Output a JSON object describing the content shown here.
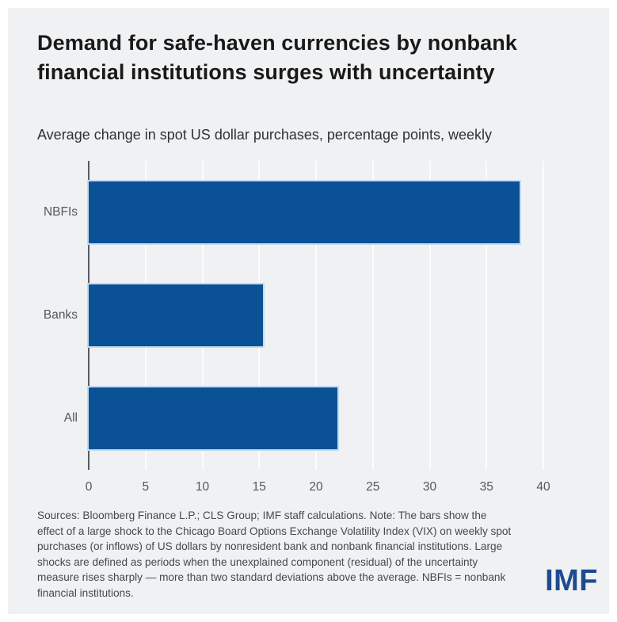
{
  "colors": {
    "card_bg": "#f0f1f2",
    "bar": "#0a5196",
    "bar_halo": "#c3daf1",
    "grid_line": "rgba(255,255,255,0.8)",
    "axis_line": "#595c60",
    "axis_text": "#54575b",
    "title_text": "#191919",
    "subtitle_text": "#2f3133",
    "note_text": "#45484c",
    "imf_logo": "#1e4b8f"
  },
  "header": {
    "title_lines": [
      "Demand for safe-haven currencies by nonbank",
      "financial institutions surges with uncertainty"
    ],
    "subtitle": "Average change in spot US dollar purchases, percentage points, weekly"
  },
  "chart_data": {
    "type": "bar",
    "orientation": "horizontal",
    "title": "Demand for safe-haven currencies by nonbank financial institutions surges with uncertainty",
    "subtitle": "Average change in spot US dollar purchases, percentage points, weekly",
    "categories": [
      "NBFIs",
      "Banks",
      "All"
    ],
    "values": [
      37.9,
      15.3,
      21.9
    ],
    "xlabel": "",
    "ylabel": "",
    "xlim": [
      0,
      40
    ],
    "xticks": [
      0,
      5,
      10,
      15,
      20,
      25,
      30,
      35,
      40
    ],
    "grid": true,
    "legend": false
  },
  "footer": {
    "note": "Sources: Bloomberg Finance L.P.; CLS Group; IMF staff calculations. Note: The bars show the effect of a large shock to the Chicago Board Options Exchange Volatility Index (VIX) on weekly spot purchases (or inflows) of US dollars by nonresident bank and nonbank financial institutions. Large shocks are defined as periods when the unexplained component (residual) of the uncertainty measure rises sharply — more than two standard deviations above the average. NBFIs = nonbank financial institutions.",
    "logo": "IMF"
  }
}
